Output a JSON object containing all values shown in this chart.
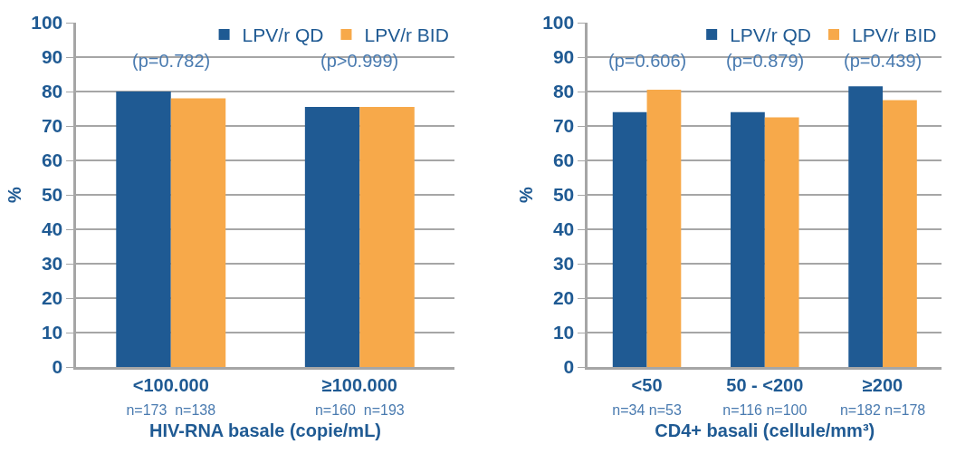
{
  "chart_data": [
    {
      "type": "bar",
      "categories": [
        "<100.000\nn=173  n=138",
        "≥100.000\nn=160  n=193"
      ],
      "xlabel": "HIV-RNA basale (copie/mL)",
      "ylabel": "%",
      "ylim": [
        0,
        100
      ],
      "yticks": [
        0,
        10,
        20,
        30,
        40,
        50,
        60,
        70,
        80,
        90,
        100
      ],
      "grid": "y",
      "legend": "top right",
      "annotations": [
        "(p=0.782)",
        "(p>0.999)"
      ],
      "series": [
        {
          "name": "LPV/r QD",
          "color": "#1f5a93",
          "values": [
            80,
            75.5
          ]
        },
        {
          "name": "LPV/r BID",
          "color": "#f7a94a",
          "values": [
            78,
            75.5
          ]
        }
      ]
    },
    {
      "type": "bar",
      "categories": [
        "<50\nn=34 n=53",
        "50 - <200\nn=116 n=100",
        "≥200\nn=182 n=178"
      ],
      "xlabel": "CD4+ basali (cellule/mm³)",
      "ylabel": "%",
      "ylim": [
        0,
        100
      ],
      "yticks": [
        0,
        10,
        20,
        30,
        40,
        50,
        60,
        70,
        80,
        90,
        100
      ],
      "grid": "y",
      "legend": "top right",
      "annotations": [
        "(p=0.606)",
        "(p=0.879)",
        "(p=0.439)"
      ],
      "series": [
        {
          "name": "LPV/r QD",
          "color": "#1f5a93",
          "values": [
            74,
            74,
            81.5
          ]
        },
        {
          "name": "LPV/r BID",
          "color": "#f7a94a",
          "values": [
            80.5,
            72.5,
            77.5
          ]
        }
      ]
    }
  ]
}
